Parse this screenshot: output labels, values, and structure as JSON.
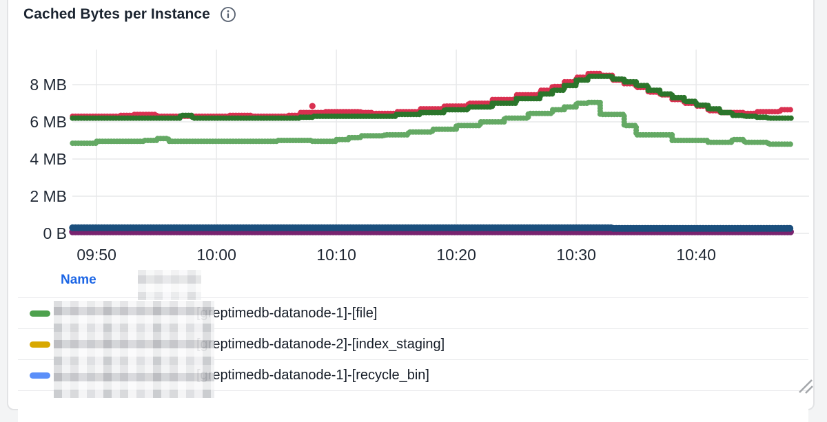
{
  "panel": {
    "title": "Cached Bytes per Instance",
    "info_icon": "info"
  },
  "legend": {
    "header": "Name",
    "rows": [
      {
        "color": "#4ea14e",
        "label": "[greptimedb-datanode-1]-[file]"
      },
      {
        "color": "#d8a800",
        "label": "[greptimedb-datanode-2]-[index_staging]"
      },
      {
        "color": "#5b8ff9",
        "label": "[greptimedb-datanode-1]-[recycle_bin]"
      }
    ],
    "redacted_note": "left portion of names pixelated"
  },
  "chart_data": {
    "type": "line",
    "style": "dotted-step",
    "title": "Cached Bytes per Instance",
    "x_ticks": [
      "09:50",
      "10:00",
      "10:10",
      "10:20",
      "10:30",
      "10:40"
    ],
    "y_ticks": [
      "0 B",
      "2 MB",
      "4 MB",
      "6 MB",
      "8 MB"
    ],
    "x_range": [
      "09:48",
      "10:48"
    ],
    "y_range_mb": [
      0,
      9.3
    ],
    "values_unit": "MB",
    "grid": true,
    "legend_position": "bottom-table",
    "colors": {
      "grid": "#e7e8ea",
      "tick_text": "#1f2733"
    },
    "series": [
      {
        "name": "series-light-green",
        "color": "#64a964",
        "width": 8,
        "points": [
          [
            "09:48",
            4.85
          ],
          [
            "09:50",
            4.95
          ],
          [
            "09:54",
            5.0
          ],
          [
            "09:55",
            5.1
          ],
          [
            "09:56",
            4.95
          ],
          [
            "10:00",
            4.95
          ],
          [
            "10:05",
            5.0
          ],
          [
            "10:08",
            4.95
          ],
          [
            "10:10",
            5.05
          ],
          [
            "10:11",
            5.15
          ],
          [
            "10:12",
            5.25
          ],
          [
            "10:14",
            5.3
          ],
          [
            "10:16",
            5.45
          ],
          [
            "10:18",
            5.6
          ],
          [
            "10:20",
            5.8
          ],
          [
            "10:22",
            6.0
          ],
          [
            "10:24",
            6.2
          ],
          [
            "10:26",
            6.45
          ],
          [
            "10:28",
            6.65
          ],
          [
            "10:29",
            6.8
          ],
          [
            "10:30",
            7.0
          ],
          [
            "10:31",
            7.05
          ],
          [
            "10:32",
            6.4
          ],
          [
            "10:34",
            5.8
          ],
          [
            "10:35",
            5.3
          ],
          [
            "10:38",
            5.0
          ],
          [
            "10:41",
            4.9
          ],
          [
            "10:43",
            5.05
          ],
          [
            "10:44",
            4.9
          ],
          [
            "10:46",
            4.8
          ],
          [
            "10:48",
            4.8
          ]
        ]
      },
      {
        "name": "series-red",
        "color": "#d93050",
        "width": 8,
        "points": [
          [
            "09:48",
            6.3
          ],
          [
            "09:52",
            6.35
          ],
          [
            "09:53",
            6.4
          ],
          [
            "09:55",
            6.3
          ],
          [
            "09:58",
            6.3
          ],
          [
            "10:01",
            6.35
          ],
          [
            "10:03",
            6.3
          ],
          [
            "10:06",
            6.35
          ],
          [
            "10:07",
            6.5
          ],
          [
            "10:09",
            6.55
          ],
          [
            "10:12",
            6.5
          ],
          [
            "10:13",
            6.45
          ],
          [
            "10:15",
            6.55
          ],
          [
            "10:17",
            6.7
          ],
          [
            "10:19",
            6.85
          ],
          [
            "10:21",
            7.0
          ],
          [
            "10:23",
            7.2
          ],
          [
            "10:25",
            7.45
          ],
          [
            "10:27",
            7.7
          ],
          [
            "10:28",
            7.9
          ],
          [
            "10:29",
            8.15
          ],
          [
            "10:30",
            8.4
          ],
          [
            "10:31",
            8.6
          ],
          [
            "10:32",
            8.5
          ],
          [
            "10:33",
            8.25
          ],
          [
            "10:34",
            8.05
          ],
          [
            "10:35",
            7.85
          ],
          [
            "10:36",
            7.6
          ],
          [
            "10:37",
            7.45
          ],
          [
            "10:38",
            7.2
          ],
          [
            "10:39",
            7.0
          ],
          [
            "10:40",
            6.85
          ],
          [
            "10:41",
            6.6
          ],
          [
            "10:42",
            6.5
          ],
          [
            "10:44",
            6.45
          ],
          [
            "10:45",
            6.55
          ],
          [
            "10:47",
            6.65
          ],
          [
            "10:48",
            6.65
          ]
        ],
        "outlier": {
          "t": "10:08",
          "v": 6.85
        }
      },
      {
        "name": "series-dark-green",
        "color": "#2b752b",
        "width": 8,
        "points": [
          [
            "09:48",
            6.2
          ],
          [
            "09:56",
            6.2
          ],
          [
            "09:57",
            6.35
          ],
          [
            "09:58",
            6.2
          ],
          [
            "10:07",
            6.25
          ],
          [
            "10:08",
            6.3
          ],
          [
            "10:14",
            6.3
          ],
          [
            "10:15",
            6.4
          ],
          [
            "10:17",
            6.5
          ],
          [
            "10:19",
            6.65
          ],
          [
            "10:21",
            6.8
          ],
          [
            "10:23",
            7.0
          ],
          [
            "10:25",
            7.25
          ],
          [
            "10:27",
            7.5
          ],
          [
            "10:28",
            7.7
          ],
          [
            "10:29",
            7.95
          ],
          [
            "10:30",
            8.25
          ],
          [
            "10:31",
            8.45
          ],
          [
            "10:32",
            8.45
          ],
          [
            "10:33",
            8.3
          ],
          [
            "10:34",
            8.15
          ],
          [
            "10:35",
            7.95
          ],
          [
            "10:36",
            7.7
          ],
          [
            "10:37",
            7.5
          ],
          [
            "10:38",
            7.3
          ],
          [
            "10:39",
            7.1
          ],
          [
            "10:40",
            6.9
          ],
          [
            "10:41",
            6.7
          ],
          [
            "10:42",
            6.5
          ],
          [
            "10:43",
            6.35
          ],
          [
            "10:44",
            6.3
          ],
          [
            "10:45",
            6.25
          ],
          [
            "10:46",
            6.2
          ],
          [
            "10:48",
            6.2
          ]
        ]
      },
      {
        "name": "series-purple",
        "color": "#78236f",
        "width": 10,
        "points": [
          [
            "09:48",
            0.08
          ],
          [
            "10:48",
            0.08
          ]
        ]
      },
      {
        "name": "series-navy",
        "color": "#1b4f7d",
        "width": 10,
        "points": [
          [
            "09:48",
            0.3
          ],
          [
            "10:32",
            0.3
          ],
          [
            "10:33",
            0.27
          ],
          [
            "10:48",
            0.27
          ]
        ]
      }
    ]
  }
}
